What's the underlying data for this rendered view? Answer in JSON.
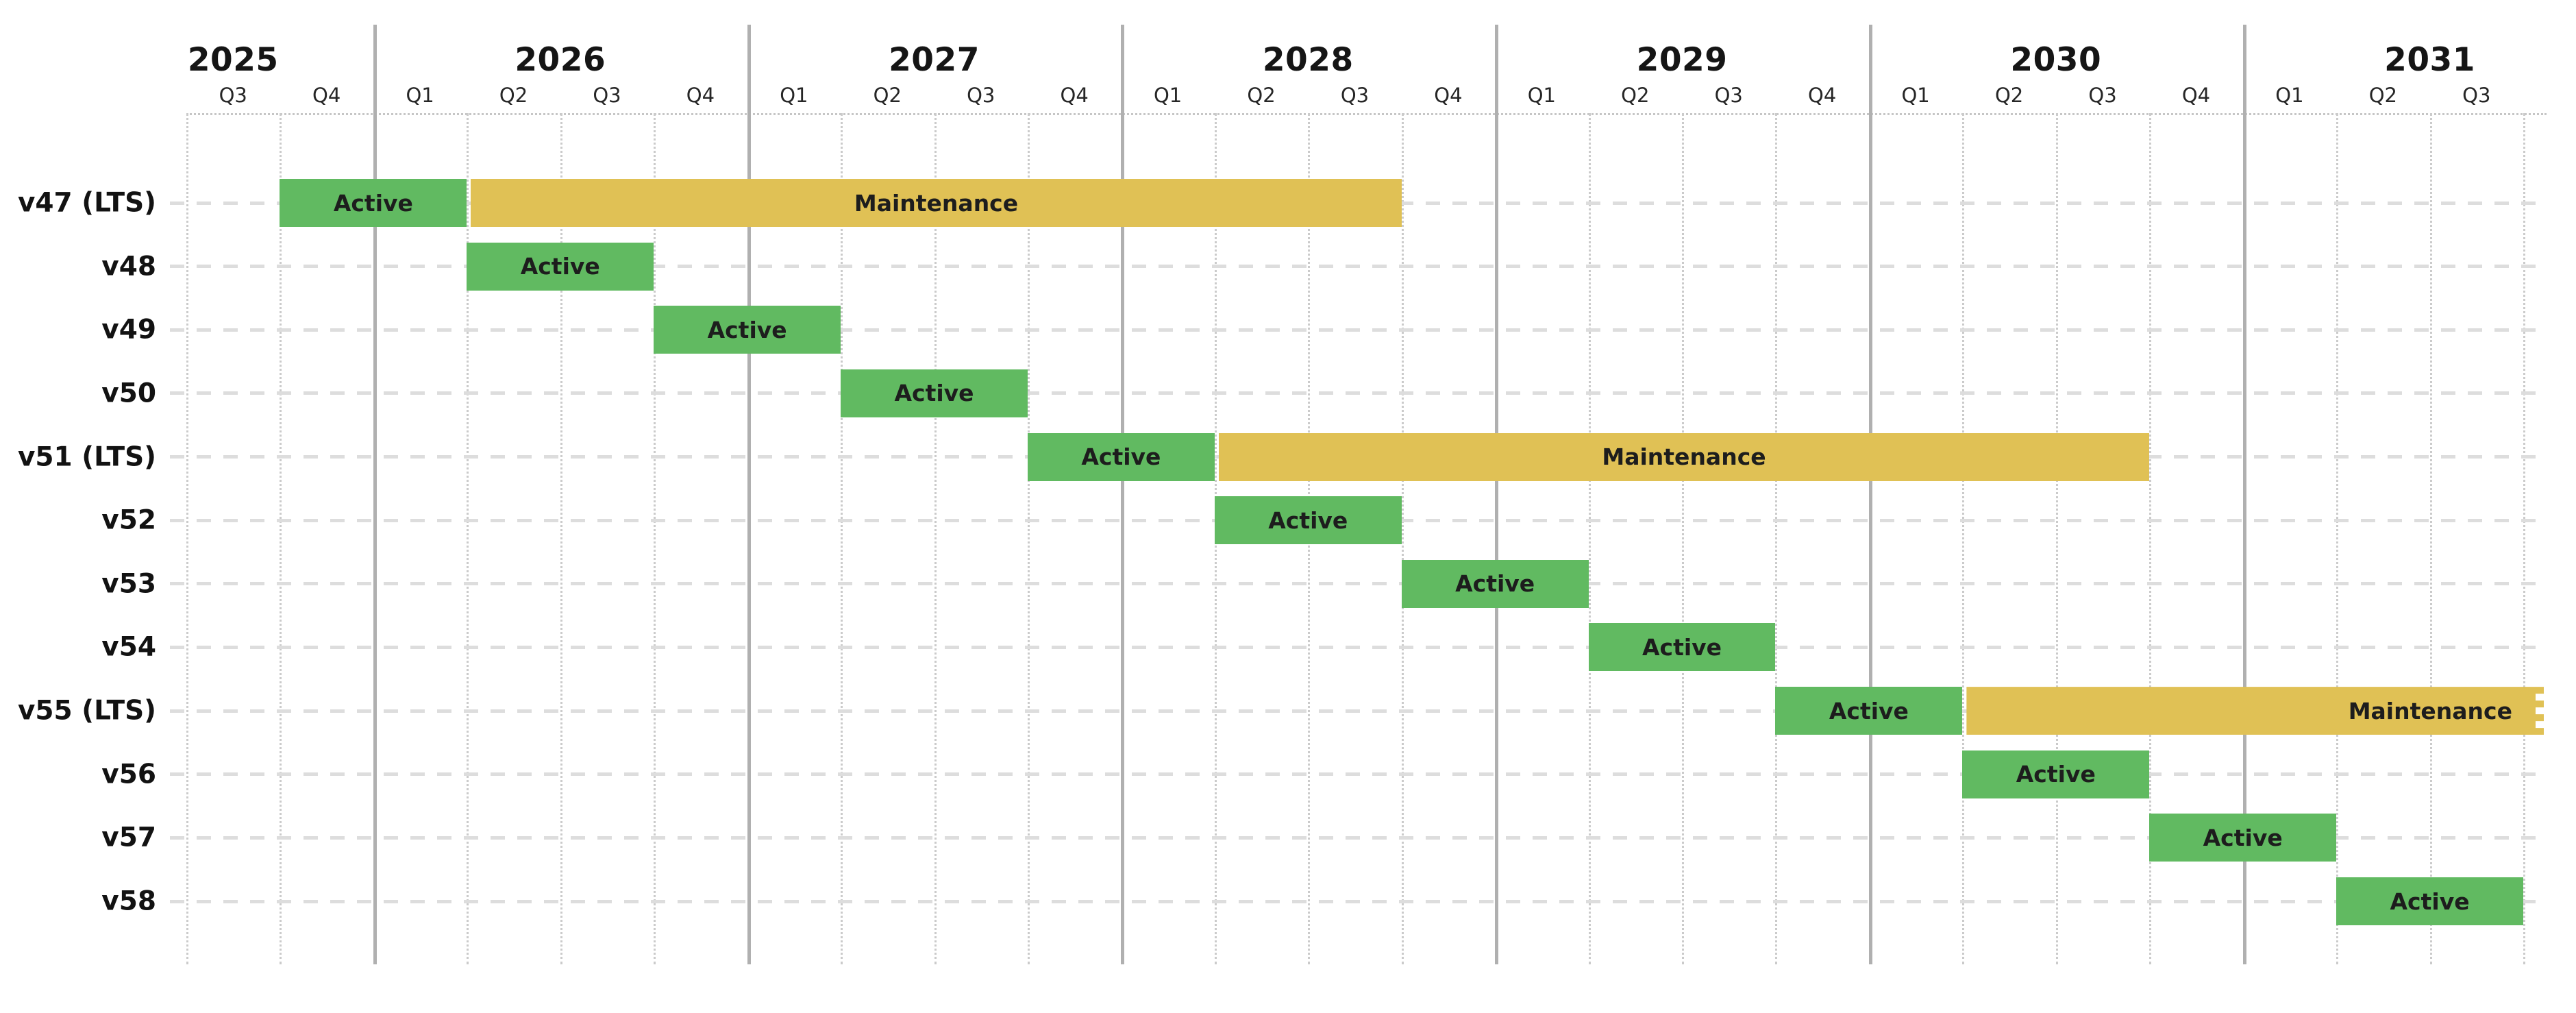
{
  "chart_data": {
    "type": "gantt",
    "title": "",
    "x_axis": {
      "unit": "quarter",
      "range_start": "2025-Q3",
      "range_end": "2031-Q3",
      "total_quarters": 25,
      "years": [
        {
          "label": "2025",
          "q_start": 0,
          "quarters": [
            "Q3",
            "Q4"
          ],
          "label_q": 0.5
        },
        {
          "label": "2026",
          "q_start": 2,
          "quarters": [
            "Q1",
            "Q2",
            "Q3",
            "Q4"
          ],
          "label_q": 4
        },
        {
          "label": "2027",
          "q_start": 6,
          "quarters": [
            "Q1",
            "Q2",
            "Q3",
            "Q4"
          ],
          "label_q": 8
        },
        {
          "label": "2028",
          "q_start": 10,
          "quarters": [
            "Q1",
            "Q2",
            "Q3",
            "Q4"
          ],
          "label_q": 12
        },
        {
          "label": "2029",
          "q_start": 14,
          "quarters": [
            "Q1",
            "Q2",
            "Q3",
            "Q4"
          ],
          "label_q": 16
        },
        {
          "label": "2030",
          "q_start": 18,
          "quarters": [
            "Q1",
            "Q2",
            "Q3",
            "Q4"
          ],
          "label_q": 20
        },
        {
          "label": "2031",
          "q_start": 22,
          "quarters": [
            "Q1",
            "Q2",
            "Q3"
          ],
          "label_q": 24
        }
      ]
    },
    "colors": {
      "active": "#61ba61",
      "maintenance": "#e0c155",
      "grid_year_line": "#b0b0b0",
      "grid_quarter_line": "#cbcbcb",
      "row_dash_line": "#dddddd",
      "text": "#1c1c1c"
    },
    "grid": true,
    "legend": null,
    "rows": [
      {
        "name": "v47 (LTS)",
        "lts": true,
        "phases": [
          {
            "label": "Active",
            "type": "active",
            "start": "2025-Q4",
            "end": "2026-Q1",
            "q_start": 1,
            "q_end": 3,
            "continues_beyond_chart": false
          },
          {
            "label": "Maintenance",
            "type": "maintenance",
            "start": "2026-Q2",
            "end": "2028-Q3",
            "q_start": 3,
            "q_end": 13,
            "continues_beyond_chart": false
          }
        ]
      },
      {
        "name": "v48",
        "lts": false,
        "phases": [
          {
            "label": "Active",
            "type": "active",
            "start": "2026-Q2",
            "end": "2026-Q3",
            "q_start": 3,
            "q_end": 5,
            "continues_beyond_chart": false
          }
        ]
      },
      {
        "name": "v49",
        "lts": false,
        "phases": [
          {
            "label": "Active",
            "type": "active",
            "start": "2026-Q4",
            "end": "2027-Q1",
            "q_start": 5,
            "q_end": 7,
            "continues_beyond_chart": false
          }
        ]
      },
      {
        "name": "v50",
        "lts": false,
        "phases": [
          {
            "label": "Active",
            "type": "active",
            "start": "2027-Q2",
            "end": "2027-Q3",
            "q_start": 7,
            "q_end": 9,
            "continues_beyond_chart": false
          }
        ]
      },
      {
        "name": "v51 (LTS)",
        "lts": true,
        "phases": [
          {
            "label": "Active",
            "type": "active",
            "start": "2027-Q4",
            "end": "2028-Q1",
            "q_start": 9,
            "q_end": 11,
            "continues_beyond_chart": false
          },
          {
            "label": "Maintenance",
            "type": "maintenance",
            "start": "2028-Q2",
            "end": "2030-Q3",
            "q_start": 11,
            "q_end": 21,
            "continues_beyond_chart": false
          }
        ]
      },
      {
        "name": "v52",
        "lts": false,
        "phases": [
          {
            "label": "Active",
            "type": "active",
            "start": "2028-Q2",
            "end": "2028-Q3",
            "q_start": 11,
            "q_end": 13,
            "continues_beyond_chart": false
          }
        ]
      },
      {
        "name": "v53",
        "lts": false,
        "phases": [
          {
            "label": "Active",
            "type": "active",
            "start": "2028-Q4",
            "end": "2029-Q1",
            "q_start": 13,
            "q_end": 15,
            "continues_beyond_chart": false
          }
        ]
      },
      {
        "name": "v54",
        "lts": false,
        "phases": [
          {
            "label": "Active",
            "type": "active",
            "start": "2029-Q2",
            "end": "2029-Q3",
            "q_start": 15,
            "q_end": 17,
            "continues_beyond_chart": false
          }
        ]
      },
      {
        "name": "v55 (LTS)",
        "lts": true,
        "phases": [
          {
            "label": "Active",
            "type": "active",
            "start": "2029-Q4",
            "end": "2030-Q1",
            "q_start": 17,
            "q_end": 19,
            "continues_beyond_chart": false
          },
          {
            "label": "Maintenance",
            "type": "maintenance",
            "start": "2030-Q2",
            "end": null,
            "q_start": 19,
            "q_end": 29,
            "continues_beyond_chart": true
          }
        ]
      },
      {
        "name": "v56",
        "lts": false,
        "phases": [
          {
            "label": "Active",
            "type": "active",
            "start": "2030-Q2",
            "end": "2030-Q3",
            "q_start": 19,
            "q_end": 21,
            "continues_beyond_chart": false
          }
        ]
      },
      {
        "name": "v57",
        "lts": false,
        "phases": [
          {
            "label": "Active",
            "type": "active",
            "start": "2030-Q4",
            "end": "2031-Q1",
            "q_start": 21,
            "q_end": 23,
            "continues_beyond_chart": false
          }
        ]
      },
      {
        "name": "v58",
        "lts": false,
        "phases": [
          {
            "label": "Active",
            "type": "active",
            "start": "2031-Q2",
            "end": "2031-Q3",
            "q_start": 23,
            "q_end": 25,
            "continues_beyond_chart": false
          }
        ]
      }
    ]
  }
}
